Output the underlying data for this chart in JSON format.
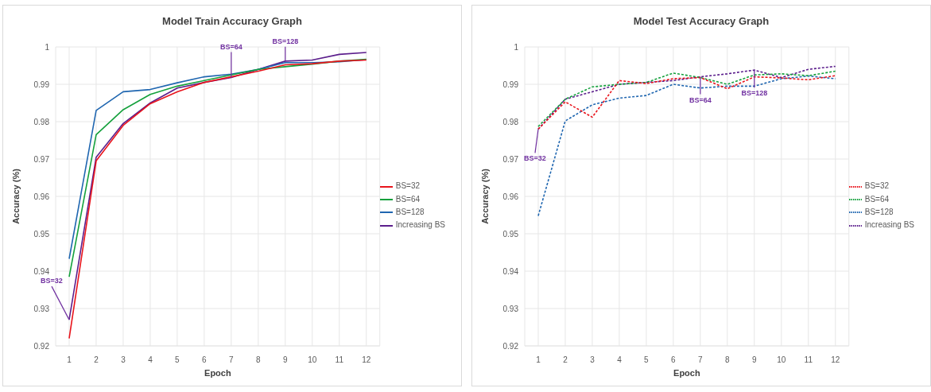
{
  "chart_data": [
    {
      "type": "line",
      "title": "Model Train Accuracy Graph",
      "xlabel": "Epoch",
      "ylabel": "Accuracy (%)",
      "x": [
        1,
        2,
        3,
        4,
        5,
        6,
        7,
        8,
        9,
        10,
        11,
        12
      ],
      "series": [
        {
          "name": "BS=32",
          "color": "#e8141c",
          "values": [
            0.922,
            0.9695,
            0.979,
            0.9848,
            0.988,
            0.9905,
            0.992,
            0.9935,
            0.9952,
            0.9955,
            0.9962,
            0.9965
          ]
        },
        {
          "name": "BS=64",
          "color": "#14a03c",
          "values": [
            0.9385,
            0.9765,
            0.9832,
            0.9873,
            0.9895,
            0.991,
            0.9925,
            0.994,
            0.9947,
            0.9954,
            0.9962,
            0.9967
          ]
        },
        {
          "name": "BS=128",
          "color": "#1f66b0",
          "values": [
            0.9433,
            0.983,
            0.988,
            0.9886,
            0.9904,
            0.992,
            0.9927,
            0.994,
            0.9958,
            0.9958,
            0.996,
            0.9966
          ]
        },
        {
          "name": "Increasing BS",
          "color": "#5b1e8c",
          "values": [
            0.927,
            0.9705,
            0.9795,
            0.985,
            0.989,
            0.9905,
            0.9918,
            0.994,
            0.9962,
            0.9965,
            0.998,
            0.9985
          ]
        }
      ],
      "xlim": [
        0.5,
        12.5
      ],
      "xticks": [
        1,
        2,
        3,
        4,
        5,
        6,
        7,
        8,
        9,
        10,
        11,
        12
      ],
      "ylim": [
        0.92,
        1
      ],
      "yticks": [
        0.92,
        0.93,
        0.94,
        0.95,
        0.96,
        0.97,
        0.98,
        0.99,
        1
      ],
      "grid": true,
      "legend": "right",
      "line_style": "solid",
      "marker": "none",
      "annotations": [
        {
          "text": "BS=32",
          "x": 1,
          "y": 0.927
        },
        {
          "text": "BS=64",
          "x": 7,
          "y": 0.9918
        },
        {
          "text": "BS=128",
          "x": 9,
          "y": 0.9962
        }
      ]
    },
    {
      "type": "line",
      "title": "Model Test Accuracy Graph",
      "xlabel": "Epoch",
      "ylabel": "Accuracy (%)",
      "x": [
        1,
        2,
        3,
        4,
        5,
        6,
        7,
        8,
        9,
        10,
        11,
        12
      ],
      "series": [
        {
          "name": "BS=32",
          "color": "#e8141c",
          "values": [
            0.978,
            0.9853,
            0.9812,
            0.991,
            0.9902,
            0.9915,
            0.9918,
            0.9888,
            0.992,
            0.9917,
            0.9912,
            0.9923
          ]
        },
        {
          "name": "BS=64",
          "color": "#14a03c",
          "values": [
            0.9787,
            0.986,
            0.9893,
            0.99,
            0.9905,
            0.993,
            0.9918,
            0.99,
            0.9925,
            0.9928,
            0.9923,
            0.9935
          ]
        },
        {
          "name": "BS=128",
          "color": "#1f66b0",
          "values": [
            0.9548,
            0.9802,
            0.9845,
            0.9863,
            0.987,
            0.99,
            0.989,
            0.9895,
            0.9895,
            0.9915,
            0.9922,
            0.9915
          ]
        },
        {
          "name": "Increasing BS",
          "color": "#5b1e8c",
          "values": [
            0.978,
            0.986,
            0.988,
            0.99,
            0.9905,
            0.991,
            0.992,
            0.9928,
            0.9938,
            0.9918,
            0.994,
            0.9948
          ]
        }
      ],
      "xlim": [
        0.5,
        12.5
      ],
      "xticks": [
        1,
        2,
        3,
        4,
        5,
        6,
        7,
        8,
        9,
        10,
        11,
        12
      ],
      "ylim": [
        0.92,
        1
      ],
      "yticks": [
        0.92,
        0.93,
        0.94,
        0.95,
        0.96,
        0.97,
        0.98,
        0.99,
        1
      ],
      "grid": true,
      "legend": "right",
      "line_style": "dashed",
      "marker": "none",
      "annotations": [
        {
          "text": "BS=32",
          "x": 1,
          "y": 0.978
        },
        {
          "text": "BS=64",
          "x": 7,
          "y": 0.992
        },
        {
          "text": "BS=128",
          "x": 9,
          "y": 0.9938
        }
      ]
    }
  ]
}
